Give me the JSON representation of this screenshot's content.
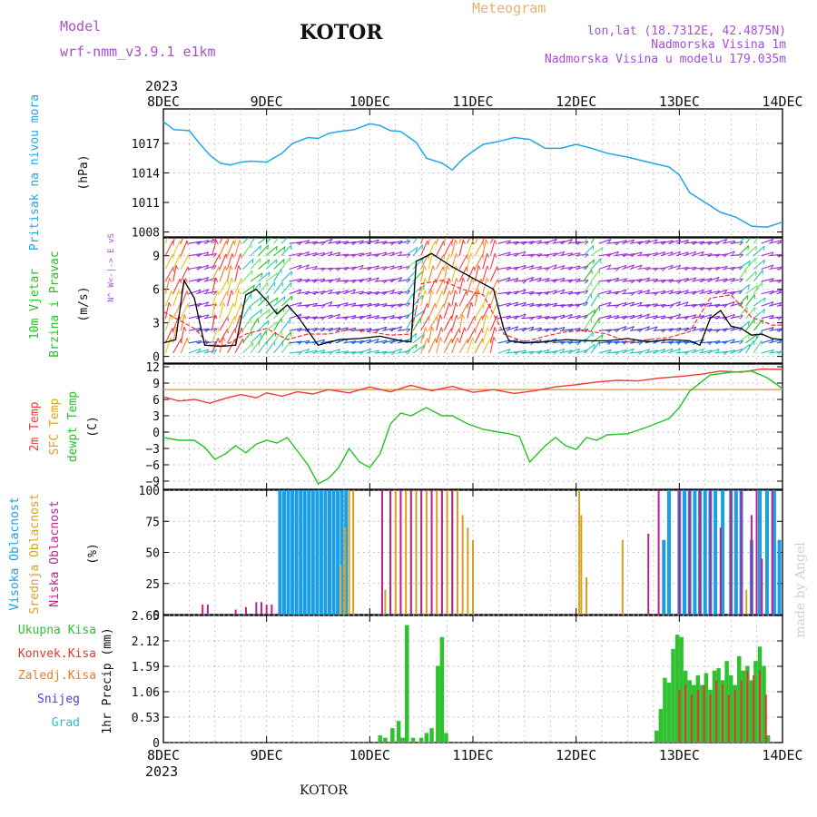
{
  "header": {
    "model_label": "Model",
    "model_name": "wrf-nmm_v3.9.1 e1km",
    "station": "KOTOR",
    "title": "Meteogram",
    "lonlat": "lon,lat (18.7312E, 42.4875N)",
    "altitude": "Nadmorska Visina 1m",
    "model_altitude": "Nadmorska Visina u modelu 179.035m",
    "footer_station": "KOTOR",
    "watermark": "made by Angel"
  },
  "colors": {
    "pressure": "#21a7e8",
    "temp2m": "#ee3a3a",
    "sfc_temp": "#e6a11a",
    "dewpt": "#23c323",
    "high_cloud": "#1a9fe6",
    "mid_cloud": "#d9a020",
    "low_cloud": "#c0208f",
    "precip_total": "#2fc12f",
    "precip_conv": "#ee3333",
    "precip_frozen": "#ef7a22",
    "snow": "#4a3bd8",
    "graupel": "#2bc1c1",
    "wind_speed": "#000000",
    "wind_purple": "#8a2be2"
  },
  "time_axis": {
    "year": "2023",
    "labels": [
      "8DEC",
      "9DEC",
      "10DEC",
      "11DEC",
      "12DEC",
      "13DEC",
      "14DEC"
    ]
  },
  "chart_data": [
    {
      "type": "line",
      "name": "pressure",
      "ylabel": [
        "Pritisak na nivou mora",
        "(hPa)"
      ],
      "yticks": [
        1008,
        1011,
        1014,
        1017
      ],
      "ylim": [
        1007.5,
        1020.5
      ],
      "x_days": [
        0,
        0.1,
        0.25,
        0.35,
        0.45,
        0.55,
        0.65,
        0.75,
        0.85,
        1.0,
        1.15,
        1.25,
        1.4,
        1.5,
        1.6,
        1.7,
        1.85,
        2.0,
        2.1,
        2.2,
        2.3,
        2.45,
        2.55,
        2.7,
        2.8,
        2.9,
        3.0,
        3.1,
        3.25,
        3.4,
        3.55,
        3.7,
        3.85,
        4.0,
        4.15,
        4.3,
        4.5,
        4.7,
        4.9,
        5.0,
        5.1,
        5.25,
        5.4,
        5.55,
        5.7,
        5.85,
        6.0
      ],
      "values": [
        1019.2,
        1018.4,
        1018.3,
        1017.0,
        1015.8,
        1015.0,
        1014.8,
        1015.1,
        1015.2,
        1015.1,
        1016.0,
        1017.0,
        1017.6,
        1017.5,
        1018.0,
        1018.2,
        1018.4,
        1019.0,
        1018.8,
        1018.3,
        1018.2,
        1017.1,
        1015.5,
        1015.0,
        1014.3,
        1015.4,
        1016.2,
        1016.9,
        1017.2,
        1017.6,
        1017.4,
        1016.5,
        1016.5,
        1016.9,
        1016.5,
        1016.0,
        1015.6,
        1015.1,
        1014.6,
        1013.8,
        1012.0,
        1011.0,
        1010.0,
        1009.5,
        1008.6,
        1008.5,
        1009.0
      ],
      "color_key": "pressure"
    },
    {
      "type": "line",
      "name": "wind",
      "ylabel": [
        "10m Vjetar",
        "Brzina i Pravac",
        "(m/s)"
      ],
      "compass": "N^ W<-|-> E vS",
      "yticks": [
        0,
        3,
        6,
        9
      ],
      "ylim": [
        -0.6,
        10.6
      ],
      "speed_x_days": [
        0,
        0.12,
        0.2,
        0.3,
        0.4,
        0.55,
        0.7,
        0.8,
        0.9,
        1.0,
        1.1,
        1.2,
        1.3,
        1.5,
        1.7,
        1.9,
        2.1,
        2.3,
        2.4,
        2.45,
        2.6,
        2.8,
        3.0,
        3.2,
        3.3,
        3.35,
        3.5,
        3.7,
        3.9,
        4.1,
        4.3,
        4.5,
        4.7,
        4.9,
        5.1,
        5.2,
        5.3,
        5.4,
        5.5,
        5.6,
        5.7,
        5.8,
        5.9,
        6.0
      ],
      "speed": [
        1.2,
        1.5,
        6.8,
        5.2,
        1.0,
        0.9,
        1.0,
        5.5,
        6.0,
        5.0,
        3.8,
        4.6,
        3.6,
        1.0,
        1.5,
        1.6,
        1.8,
        1.4,
        1.3,
        8.5,
        9.2,
        8.0,
        7.0,
        6.0,
        2.4,
        1.4,
        1.2,
        1.3,
        1.5,
        1.4,
        1.4,
        1.6,
        1.3,
        1.5,
        1.4,
        1.0,
        3.4,
        4.1,
        2.7,
        2.5,
        1.9,
        2.0,
        1.6,
        1.5
      ],
      "gust_x_days": [
        0,
        0.2,
        0.3,
        0.45,
        0.6,
        0.8,
        1.0,
        1.2,
        1.4,
        1.6,
        1.8,
        2.0,
        2.2,
        2.4,
        2.5,
        2.7,
        2.9,
        3.1,
        3.3,
        3.5,
        3.7,
        3.9,
        4.1,
        4.3,
        4.5,
        4.7,
        4.9,
        5.1,
        5.3,
        5.5,
        5.7,
        5.9,
        6.0
      ],
      "gust": [
        4.0,
        3.0,
        2.5,
        1.0,
        1.0,
        2.0,
        2.5,
        1.5,
        2.0,
        2.0,
        2.4,
        2.2,
        1.9,
        2.0,
        6.5,
        6.8,
        6.0,
        5.5,
        2.0,
        1.3,
        1.8,
        2.2,
        2.3,
        2.0,
        1.3,
        1.5,
        1.7,
        2.2,
        5.2,
        5.5,
        3.5,
        2.8,
        2.8
      ]
    },
    {
      "type": "line",
      "name": "temperature",
      "ylabel": [
        "2m Temp",
        "SFC Temp",
        "dewpt Temp",
        "(C)"
      ],
      "yticks": [
        -9,
        -6,
        -3,
        0,
        3,
        6,
        9,
        12
      ],
      "ylim": [
        -10.5,
        12.5
      ],
      "sfc_temp": 7.8,
      "temp_x_days": [
        0,
        0.15,
        0.3,
        0.45,
        0.6,
        0.75,
        0.9,
        1.0,
        1.15,
        1.3,
        1.45,
        1.6,
        1.8,
        2.0,
        2.2,
        2.4,
        2.6,
        2.8,
        3.0,
        3.2,
        3.4,
        3.6,
        3.8,
        4.0,
        4.2,
        4.4,
        4.6,
        4.8,
        5.0,
        5.2,
        5.4,
        5.6,
        5.8,
        6.0
      ],
      "temp2m": [
        6.5,
        5.7,
        6.0,
        5.3,
        6.2,
        6.9,
        6.3,
        7.2,
        6.6,
        7.4,
        7.0,
        7.8,
        7.2,
        8.3,
        7.4,
        8.6,
        7.6,
        8.4,
        7.3,
        7.8,
        7.1,
        7.6,
        8.3,
        8.7,
        9.2,
        9.5,
        9.4,
        9.9,
        10.2,
        10.6,
        11.2,
        11.0,
        11.6,
        11.5
      ],
      "dew_x_days": [
        0,
        0.15,
        0.3,
        0.4,
        0.5,
        0.6,
        0.7,
        0.8,
        0.9,
        1.0,
        1.1,
        1.2,
        1.3,
        1.4,
        1.5,
        1.6,
        1.7,
        1.8,
        1.9,
        2.0,
        2.1,
        2.2,
        2.3,
        2.4,
        2.55,
        2.7,
        2.8,
        2.95,
        3.1,
        3.25,
        3.35,
        3.45,
        3.55,
        3.7,
        3.8,
        3.9,
        4.0,
        4.1,
        4.2,
        4.3,
        4.5,
        4.7,
        4.9,
        5.0,
        5.1,
        5.3,
        5.5,
        5.7,
        5.85,
        6.0
      ],
      "dewpt": [
        -1.0,
        -1.5,
        -1.5,
        -2.8,
        -5.0,
        -4.0,
        -2.5,
        -3.8,
        -2.2,
        -1.5,
        -2.0,
        -1.0,
        -3.5,
        -6.0,
        -9.5,
        -8.5,
        -6.5,
        -3.0,
        -5.5,
        -6.5,
        -4.0,
        1.5,
        3.5,
        3.0,
        4.5,
        3.0,
        3.0,
        1.5,
        0.5,
        0.0,
        -0.3,
        -0.8,
        -5.5,
        -2.5,
        -1.0,
        -2.5,
        -3.2,
        -1.0,
        -1.5,
        -0.5,
        -0.3,
        1.0,
        2.5,
        4.5,
        7.5,
        10.5,
        11.0,
        11.2,
        10.0,
        8.0
      ]
    },
    {
      "type": "bar",
      "name": "cloud",
      "ylabel": [
        "Visoka Oblacnost",
        "Srednja Oblacnost",
        "Niska Oblacnost",
        "(%)"
      ],
      "yticks": [
        0,
        25,
        50,
        75,
        100
      ],
      "ylim": [
        0,
        100
      ],
      "series": [
        {
          "name": "Visoka Oblacnost",
          "color_key": "high_cloud",
          "x_days": [
            1.13,
            1.17,
            1.21,
            1.25,
            1.29,
            1.33,
            1.37,
            1.41,
            1.45,
            1.49,
            1.53,
            1.57,
            1.61,
            1.65,
            1.69,
            1.73,
            1.77,
            4.85,
            4.9,
            5.0,
            5.05,
            5.1,
            5.15,
            5.2,
            5.25,
            5.3,
            5.35,
            5.42,
            5.5,
            5.55,
            5.6,
            5.7,
            5.78,
            5.85,
            5.92,
            5.97
          ],
          "values": [
            100,
            100,
            100,
            100,
            100,
            100,
            100,
            100,
            100,
            100,
            100,
            100,
            100,
            100,
            100,
            100,
            100,
            60,
            100,
            100,
            100,
            100,
            100,
            100,
            100,
            100,
            100,
            100,
            100,
            100,
            100,
            60,
            100,
            100,
            100,
            60
          ]
        },
        {
          "name": "Srednja Oblacnost",
          "color_key": "mid_cloud",
          "x_days": [
            1.72,
            1.76,
            1.8,
            1.84,
            2.15,
            2.2,
            2.25,
            2.3,
            2.35,
            2.4,
            2.45,
            2.5,
            2.55,
            2.6,
            2.65,
            2.7,
            2.75,
            2.8,
            2.85,
            2.9,
            2.95,
            3.0,
            4.03,
            4.05,
            4.1,
            4.45,
            5.65,
            5.75,
            5.8
          ],
          "values": [
            40,
            70,
            100,
            100,
            20,
            100,
            100,
            100,
            100,
            100,
            100,
            100,
            100,
            100,
            100,
            100,
            100,
            100,
            100,
            80,
            70,
            60,
            100,
            80,
            30,
            60,
            20,
            100,
            25
          ]
        },
        {
          "name": "Niska Oblacnost",
          "color_key": "low_cloud",
          "x_days": [
            0.38,
            0.43,
            0.7,
            0.8,
            0.9,
            0.95,
            1.0,
            1.05,
            2.12,
            2.2,
            2.3,
            2.4,
            2.5,
            2.6,
            2.7,
            2.8,
            4.7,
            4.8,
            5.0,
            5.1,
            5.2,
            5.3,
            5.4,
            5.5,
            5.6,
            5.7,
            5.75,
            5.8,
            5.9
          ],
          "values": [
            8,
            8,
            4,
            6,
            10,
            10,
            8,
            8,
            100,
            100,
            100,
            100,
            100,
            100,
            100,
            100,
            65,
            100,
            100,
            100,
            100,
            100,
            70,
            100,
            100,
            80,
            100,
            45,
            100
          ]
        }
      ]
    },
    {
      "type": "bar",
      "name": "precipitation",
      "ylabel": [
        "1hr Precip (mm)"
      ],
      "legend": [
        "Ukupna Kisa",
        "Konvek.Kisa",
        "Zaledj.Kisa",
        "Snijeg",
        "Grad"
      ],
      "yticks": [
        0,
        0.53,
        1.06,
        1.59,
        2.12,
        2.65
      ],
      "ytick_labels": [
        "0",
        "0.53",
        "1.06",
        "1.59",
        "2.12",
        "2.65"
      ],
      "ylim": [
        0,
        2.65
      ],
      "series": [
        {
          "name": "Ukupna Kisa",
          "color_key": "precip_total",
          "x_days": [
            2.1,
            2.15,
            2.22,
            2.28,
            2.32,
            2.36,
            2.42,
            2.5,
            2.55,
            2.6,
            2.66,
            2.7,
            2.74,
            4.78,
            4.82,
            4.86,
            4.9,
            4.94,
            4.98,
            5.02,
            5.06,
            5.1,
            5.14,
            5.18,
            5.22,
            5.26,
            5.3,
            5.34,
            5.38,
            5.42,
            5.46,
            5.5,
            5.54,
            5.58,
            5.62,
            5.66,
            5.7,
            5.74,
            5.78,
            5.82,
            5.86
          ],
          "values": [
            0.15,
            0.1,
            0.3,
            0.45,
            0.1,
            2.45,
            0.1,
            0.1,
            0.2,
            0.3,
            1.6,
            2.2,
            0.2,
            0.25,
            0.7,
            1.35,
            1.25,
            1.95,
            2.25,
            2.2,
            1.5,
            1.3,
            1.2,
            1.4,
            1.2,
            1.45,
            1.1,
            1.5,
            1.55,
            1.3,
            1.7,
            1.4,
            1.2,
            1.8,
            1.5,
            1.6,
            1.3,
            1.7,
            2.0,
            1.6,
            0.15
          ]
        },
        {
          "name": "Konvek.Kisa",
          "color_key": "precip_conv",
          "x_days": [
            5.0,
            5.06,
            5.12,
            5.18,
            5.24,
            5.3,
            5.36,
            5.42,
            5.48,
            5.54,
            5.6,
            5.66,
            5.72,
            5.78,
            5.84
          ],
          "values": [
            1.1,
            1.2,
            1.0,
            1.1,
            1.2,
            1.0,
            1.3,
            1.2,
            1.0,
            1.1,
            1.3,
            1.5,
            1.4,
            1.5,
            1.0
          ]
        }
      ]
    }
  ]
}
